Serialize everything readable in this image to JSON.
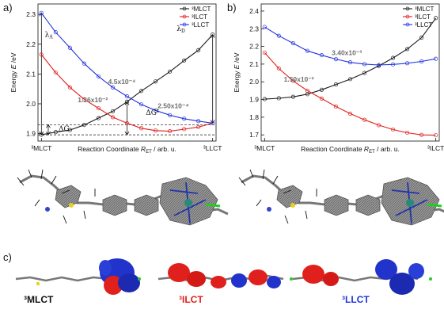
{
  "panel_labels": [
    "a)",
    "b)",
    "c)"
  ],
  "colors": {
    "mlct": "#1a1a1a",
    "ilct": "#e0201c",
    "llct": "#2233dd"
  },
  "chart_data": [
    {
      "type": "line",
      "panel": "a)",
      "xlabel_pre": "Reaction Coordinate ",
      "xlabel_sym": "R",
      "xlabel_sub": "ET",
      "xlabel_post": " / arb. u.",
      "ylabel_pre": "Energy ",
      "ylabel_sym": "E",
      "ylabel_post": " /eV",
      "x_ticks": [
        "3MLCT",
        "3LLCT"
      ],
      "x_tick_display": [
        "³MLCT",
        "³LLCT"
      ],
      "y_ticks": [
        1.9,
        2.0,
        2.1,
        2.2,
        2.3
      ],
      "ylim": [
        1.875,
        2.335
      ],
      "xlim": [
        -0.02,
        1.02
      ],
      "legend_position": "top-right",
      "series": [
        {
          "name": "³MLCT",
          "key": "mlct",
          "x": [
            0.0,
            0.0833,
            0.1667,
            0.25,
            0.3333,
            0.4167,
            0.5,
            0.5833,
            0.6667,
            0.75,
            0.8333,
            0.9167,
            1.0
          ],
          "y": [
            1.896,
            1.905,
            1.912,
            1.929,
            1.952,
            1.975,
            2.007,
            2.043,
            2.075,
            2.108,
            2.145,
            2.18,
            2.232
          ]
        },
        {
          "name": "³ILCT",
          "key": "ilct",
          "x": [
            0.0,
            0.0833,
            0.1667,
            0.25,
            0.3333,
            0.4167,
            0.5,
            0.5833,
            0.6667,
            0.75,
            0.8333,
            0.9167,
            1.0
          ],
          "y": [
            2.165,
            2.105,
            2.055,
            2.015,
            1.985,
            1.955,
            1.935,
            1.918,
            1.91,
            1.908,
            1.915,
            1.922,
            1.935
          ]
        },
        {
          "name": "³LLCT",
          "key": "llct",
          "x": [
            0.0,
            0.0833,
            0.1667,
            0.25,
            0.3333,
            0.4167,
            0.5,
            0.5833,
            0.6667,
            0.75,
            0.8333,
            0.9167,
            1.0
          ],
          "y": [
            2.305,
            2.24,
            2.188,
            2.135,
            2.092,
            2.055,
            2.025,
            1.998,
            1.978,
            1.962,
            1.95,
            1.942,
            1.935
          ]
        }
      ],
      "annotations": [
        {
          "text": "1.36x10⁻²",
          "x": 0.3,
          "y": 2.005,
          "color": "gray"
        },
        {
          "text": "4.5x10⁻⁴",
          "x": 0.47,
          "y": 2.067,
          "color": "gray"
        },
        {
          "text": "2.50x10⁻⁴",
          "x": 0.77,
          "y": 1.985,
          "color": "gray"
        }
      ],
      "symbols": [
        {
          "text": "λ",
          "sub": "A",
          "x": 0.02,
          "y": 2.225
        },
        {
          "text": "λ",
          "sub": "D",
          "x": 0.79,
          "y": 2.245
        },
        {
          "text": "ΔG",
          "sup": "‡",
          "x": 0.61,
          "y": 1.963
        },
        {
          "text": "ΔG",
          "x": 0.1,
          "y": 1.908
        }
      ],
      "guides": {
        "hlines_dashed": [
          1.896,
          1.93
        ],
        "vline_lambda_a": {
          "x": 0.0,
          "y_from": 1.896,
          "y_to": 2.305
        },
        "vline_lambda_d": {
          "x": 1.0,
          "y_from": 1.935,
          "y_to": 2.232
        },
        "vline_dg_act": {
          "x": 0.5,
          "y_from": 1.896,
          "y_to": 2.007
        },
        "vline_dg": {
          "x": 0.04,
          "y_from": 1.896,
          "y_to": 1.93
        }
      }
    },
    {
      "type": "line",
      "panel": "b)",
      "xlabel_pre": "Reaction Coordinate ",
      "xlabel_sym": "R",
      "xlabel_sub": "ET",
      "xlabel_post": " / arb. u.",
      "ylabel_pre": "Energy ",
      "ylabel_sym": "E",
      "ylabel_post": " /eV",
      "x_ticks": [
        "3MLCT",
        "3ILCT"
      ],
      "x_tick_display": [
        "³MLCT",
        "³ILCT"
      ],
      "y_ticks": [
        1.7,
        1.8,
        1.9,
        2.0,
        2.1,
        2.2,
        2.3,
        2.4
      ],
      "ylim": [
        1.665,
        2.44
      ],
      "xlim": [
        -0.02,
        1.02
      ],
      "legend_position": "top-right",
      "series": [
        {
          "name": "³MLCT",
          "key": "mlct",
          "x": [
            0.0,
            0.0833,
            0.1667,
            0.25,
            0.3333,
            0.4167,
            0.5,
            0.5833,
            0.6667,
            0.75,
            0.8333,
            0.9167,
            1.0
          ],
          "y": [
            1.902,
            1.907,
            1.915,
            1.93,
            1.955,
            1.985,
            2.015,
            2.05,
            2.09,
            2.135,
            2.185,
            2.25,
            2.36
          ]
        },
        {
          "name": "³ILCT",
          "key": "ilct",
          "x": [
            0.0,
            0.0833,
            0.1667,
            0.25,
            0.3333,
            0.4167,
            0.5,
            0.5833,
            0.6667,
            0.75,
            0.8333,
            0.9167,
            1.0
          ],
          "y": [
            2.165,
            2.075,
            2.005,
            1.95,
            1.905,
            1.86,
            1.82,
            1.785,
            1.755,
            1.73,
            1.712,
            1.7,
            1.698
          ]
        },
        {
          "name": "³LLCT",
          "key": "llct",
          "x": [
            0.0,
            0.0833,
            0.1667,
            0.25,
            0.3333,
            0.4167,
            0.5,
            0.5833,
            0.6667,
            0.75,
            0.8333,
            0.9167,
            1.0
          ],
          "y": [
            2.31,
            2.26,
            2.218,
            2.175,
            2.15,
            2.128,
            2.11,
            2.1,
            2.095,
            2.098,
            2.105,
            2.115,
            2.13
          ]
        }
      ],
      "annotations": [
        {
          "text": "3.40x10⁻³",
          "x": 0.48,
          "y": 2.15,
          "color": "gray"
        },
        {
          "text": "1.50x10⁻²",
          "x": 0.2,
          "y": 2.0,
          "color": "gray"
        }
      ]
    }
  ],
  "panel_c": {
    "labels": [
      {
        "text": "³MLCT",
        "key": "mlct"
      },
      {
        "text": "³ILCT",
        "key": "ilct"
      },
      {
        "text": "³LLCT",
        "key": "llct"
      }
    ]
  }
}
